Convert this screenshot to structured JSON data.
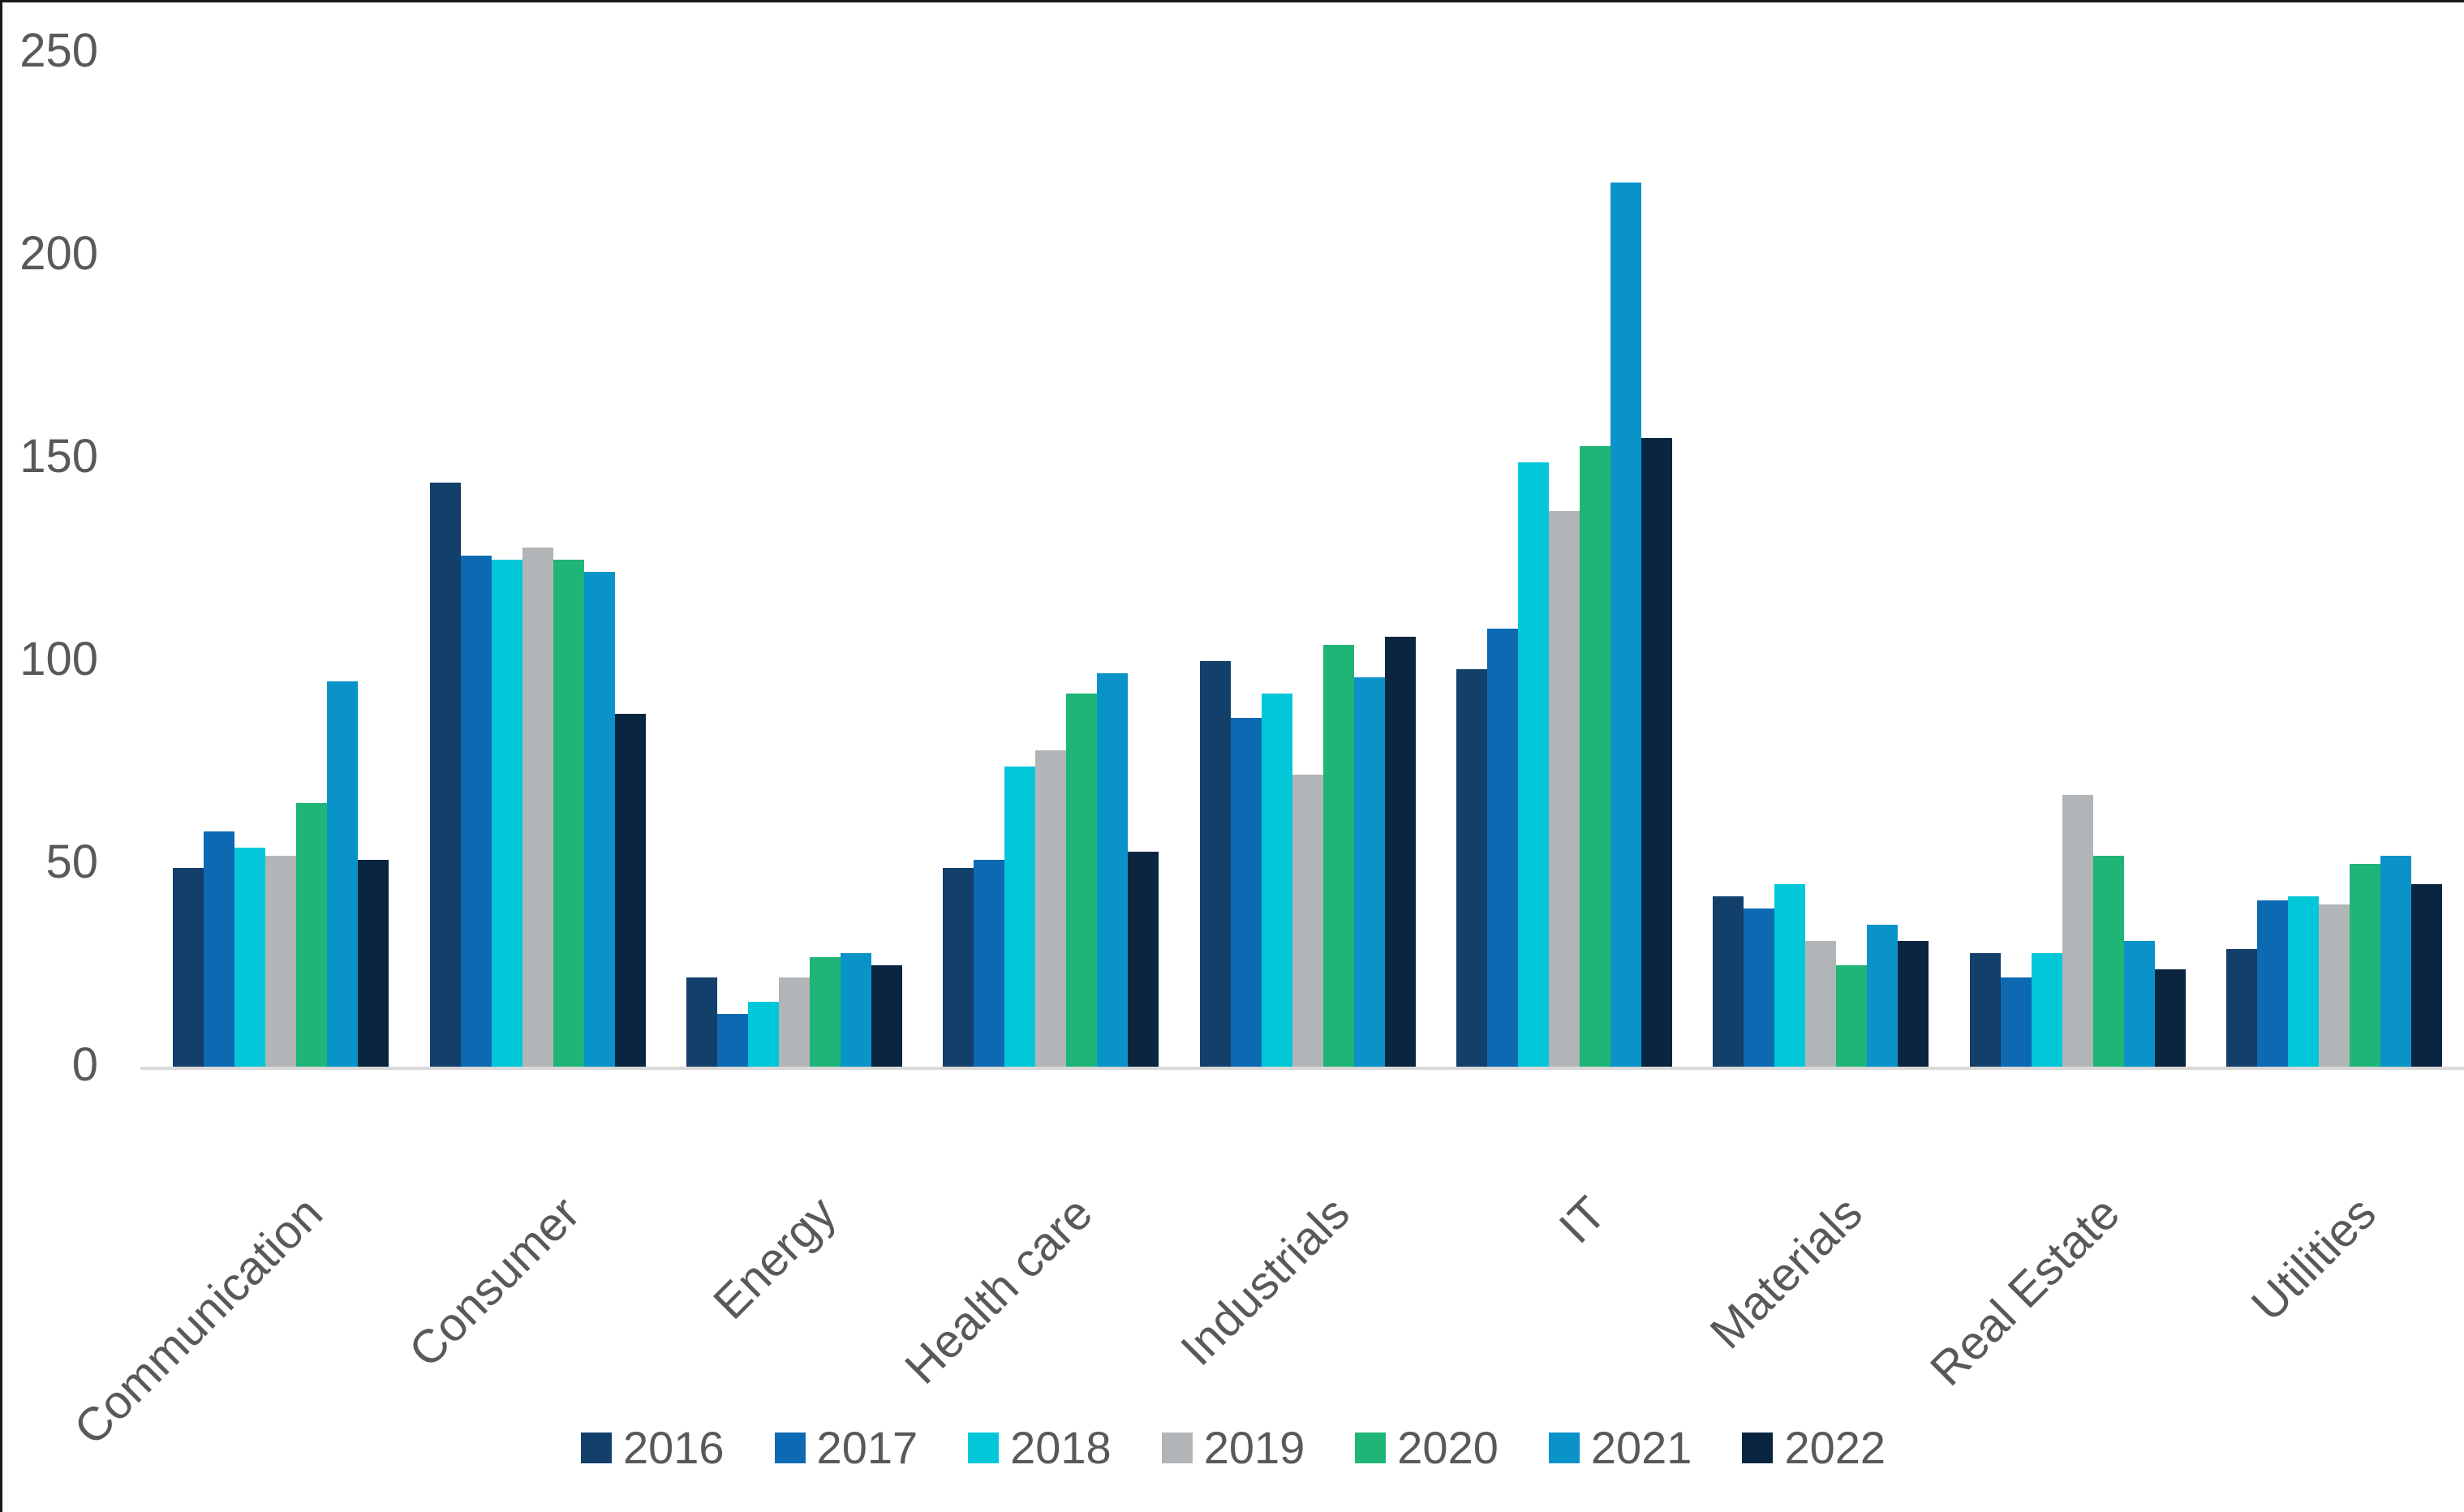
{
  "frame": {
    "background": "#ffffff",
    "edge_border_color": "#1a1a1a"
  },
  "axis": {
    "text_color": "#595959",
    "line_color": "#d9d9d9"
  },
  "chart_data": {
    "type": "bar",
    "title": "",
    "xlabel": "",
    "ylabel": "",
    "ylim": [
      0,
      250
    ],
    "yticks": [
      0,
      50,
      100,
      150,
      200,
      250
    ],
    "grid": false,
    "legend_position": "bottom",
    "categories": [
      "Communication",
      "Consumer",
      "Energy",
      "Health care",
      "Industrials",
      "IT",
      "Materials",
      "Real Estate",
      "Utilities"
    ],
    "series": [
      {
        "name": "2016",
        "color": "#133f6b",
        "values": [
          49,
          144,
          22,
          49,
          100,
          98,
          42,
          28,
          29
        ]
      },
      {
        "name": "2017",
        "color": "#0d6ab2",
        "values": [
          58,
          126,
          13,
          51,
          86,
          108,
          39,
          22,
          41
        ]
      },
      {
        "name": "2018",
        "color": "#02c7d9",
        "values": [
          54,
          125,
          16,
          74,
          92,
          149,
          45,
          28,
          42
        ]
      },
      {
        "name": "2019",
        "color": "#b2b5b8",
        "values": [
          52,
          128,
          22,
          78,
          72,
          137,
          31,
          67,
          40
        ]
      },
      {
        "name": "2020",
        "color": "#1fb577",
        "values": [
          65,
          125,
          27,
          92,
          104,
          153,
          25,
          52,
          50
        ]
      },
      {
        "name": "2021",
        "color": "#0a93c8",
        "values": [
          95,
          122,
          28,
          97,
          96,
          218,
          35,
          31,
          52
        ]
      },
      {
        "name": "2022",
        "color": "#0a2540",
        "values": [
          51,
          87,
          25,
          53,
          106,
          155,
          31,
          24,
          45
        ]
      }
    ]
  }
}
